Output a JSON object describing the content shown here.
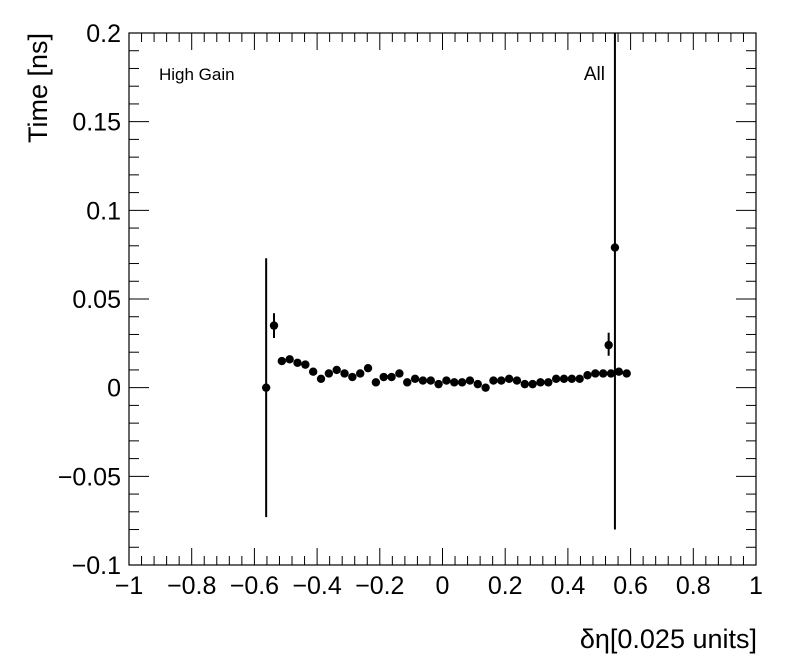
{
  "chart_data": {
    "type": "scatter",
    "xlabel": "δη[0.025 units]",
    "ylabel": "Time [ns]",
    "xlim": [
      -1,
      1
    ],
    "ylim": [
      -0.1,
      0.2
    ],
    "x_ticks": [
      -1,
      -0.8,
      -0.6,
      -0.4,
      -0.2,
      0,
      0.2,
      0.4,
      0.6,
      0.8,
      1
    ],
    "x_tick_labels": [
      "−1",
      "−0.8",
      "−0.6",
      "−0.4",
      "−0.2",
      "0",
      "0.2",
      "0.4",
      "0.6",
      "0.8",
      "1"
    ],
    "y_ticks": [
      -0.1,
      -0.05,
      0,
      0.05,
      0.1,
      0.15,
      0.2
    ],
    "y_tick_labels": [
      "−0.1",
      "−0.05",
      "0",
      "0.05",
      "0.1",
      "0.15",
      "0.2"
    ],
    "annotations": {
      "gain": "High Gain",
      "selection": "All"
    },
    "grid": false,
    "series": [
      {
        "marker": "filled-circle",
        "color": "#000000",
        "points": [
          {
            "x": -0.5625,
            "y": 0.0,
            "err": 0.073
          },
          {
            "x": -0.5375,
            "y": 0.035,
            "err": 0.007
          },
          {
            "x": -0.5125,
            "y": 0.015
          },
          {
            "x": -0.4875,
            "y": 0.016
          },
          {
            "x": -0.4625,
            "y": 0.014
          },
          {
            "x": -0.4375,
            "y": 0.013
          },
          {
            "x": -0.4125,
            "y": 0.009
          },
          {
            "x": -0.3875,
            "y": 0.005
          },
          {
            "x": -0.3625,
            "y": 0.008
          },
          {
            "x": -0.3375,
            "y": 0.01
          },
          {
            "x": -0.3125,
            "y": 0.008
          },
          {
            "x": -0.2875,
            "y": 0.006
          },
          {
            "x": -0.2625,
            "y": 0.008
          },
          {
            "x": -0.2375,
            "y": 0.011
          },
          {
            "x": -0.2125,
            "y": 0.003
          },
          {
            "x": -0.1875,
            "y": 0.006
          },
          {
            "x": -0.1625,
            "y": 0.006
          },
          {
            "x": -0.1375,
            "y": 0.008
          },
          {
            "x": -0.1125,
            "y": 0.003
          },
          {
            "x": -0.0875,
            "y": 0.005
          },
          {
            "x": -0.0625,
            "y": 0.004
          },
          {
            "x": -0.0375,
            "y": 0.004
          },
          {
            "x": -0.0125,
            "y": 0.002
          },
          {
            "x": 0.0125,
            "y": 0.004
          },
          {
            "x": 0.0375,
            "y": 0.003
          },
          {
            "x": 0.0625,
            "y": 0.003
          },
          {
            "x": 0.0875,
            "y": 0.004
          },
          {
            "x": 0.1125,
            "y": 0.002
          },
          {
            "x": 0.1375,
            "y": 0.0
          },
          {
            "x": 0.1625,
            "y": 0.004
          },
          {
            "x": 0.1875,
            "y": 0.004
          },
          {
            "x": 0.2125,
            "y": 0.005
          },
          {
            "x": 0.2375,
            "y": 0.004
          },
          {
            "x": 0.2625,
            "y": 0.002
          },
          {
            "x": 0.2875,
            "y": 0.002
          },
          {
            "x": 0.3125,
            "y": 0.003
          },
          {
            "x": 0.3375,
            "y": 0.003
          },
          {
            "x": 0.3625,
            "y": 0.005
          },
          {
            "x": 0.3875,
            "y": 0.005
          },
          {
            "x": 0.4125,
            "y": 0.005
          },
          {
            "x": 0.4375,
            "y": 0.005
          },
          {
            "x": 0.4625,
            "y": 0.007
          },
          {
            "x": 0.4875,
            "y": 0.008
          },
          {
            "x": 0.5125,
            "y": 0.008
          },
          {
            "x": 0.5375,
            "y": 0.008
          },
          {
            "x": 0.5625,
            "y": 0.009
          },
          {
            "x": 0.5875,
            "y": 0.008
          }
        ]
      }
    ]
  }
}
